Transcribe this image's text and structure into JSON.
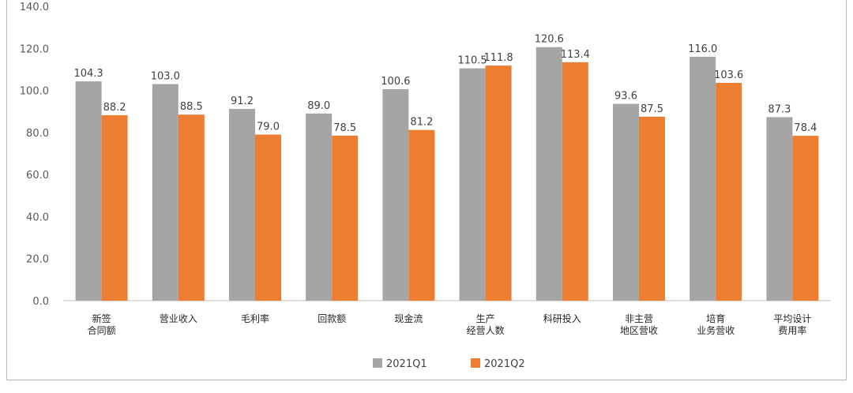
{
  "chart_data": {
    "type": "bar",
    "title": "",
    "xlabel": "",
    "ylabel": "",
    "ylim": [
      0,
      140
    ],
    "yticks": [
      "0.0",
      "20.0",
      "40.0",
      "60.0",
      "80.0",
      "100.0",
      "120.0",
      "140.0"
    ],
    "categories": [
      [
        "新签",
        "合同额"
      ],
      [
        "营业收入"
      ],
      [
        "毛利率"
      ],
      [
        "回款额"
      ],
      [
        "现金流"
      ],
      [
        "生产",
        "经营人数"
      ],
      [
        "科研投入"
      ],
      [
        "非主营",
        "地区营收"
      ],
      [
        "培育",
        "业务营收"
      ],
      [
        "平均设计",
        "费用率"
      ]
    ],
    "series": [
      {
        "name": "2021Q1",
        "color": "#a5a5a5",
        "values": [
          104.3,
          103.0,
          91.2,
          89.0,
          100.6,
          110.5,
          120.6,
          93.6,
          116.0,
          87.3
        ],
        "labels": [
          "104.3",
          "103.0",
          "91.2",
          "89.0",
          "100.6",
          "110.5",
          "120.6",
          "93.6",
          "116.0",
          "87.3"
        ]
      },
      {
        "name": "2021Q2",
        "color": "#ed7d31",
        "values": [
          88.2,
          88.5,
          79.0,
          78.5,
          81.2,
          111.8,
          113.4,
          87.5,
          103.6,
          78.4
        ],
        "labels": [
          "88.2",
          "88.5",
          "79.0",
          "78.5",
          "81.2",
          "111.8",
          "113.4",
          "87.5",
          "103.6",
          "78.4"
        ]
      }
    ],
    "legend_position": "bottom",
    "grid": false
  }
}
